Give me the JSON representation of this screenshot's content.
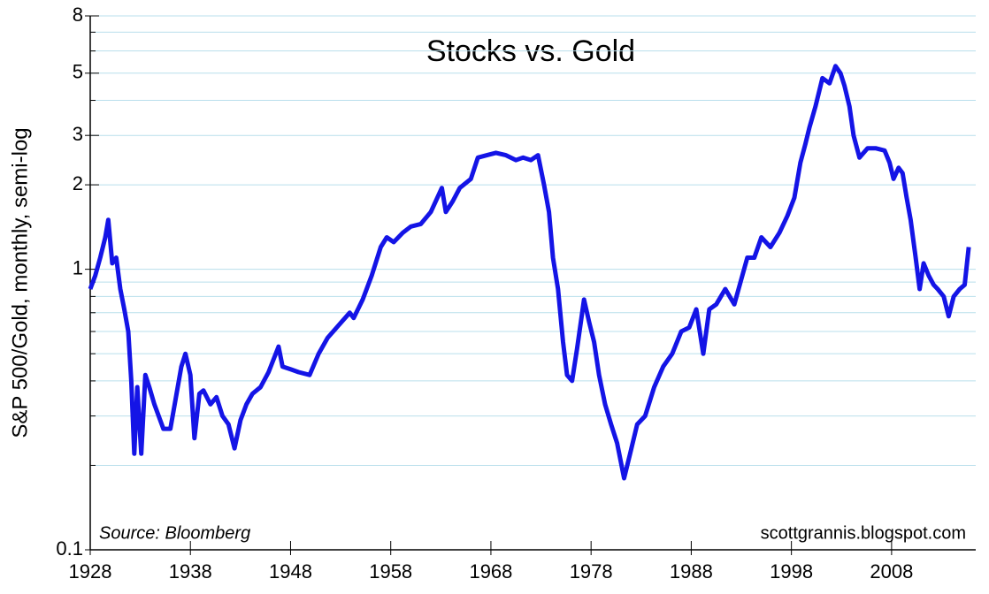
{
  "chart_data": {
    "type": "line",
    "title": "Stocks vs. Gold",
    "y_label": "S&P 500/Gold, monthly, semi-log",
    "source": "Source: Bloomberg",
    "credit": "scottgrannis.blogspot.com",
    "yscale": "log",
    "grid": true,
    "color": "#1414e6",
    "grid_color": "#b9dfec",
    "xlim": [
      1928,
      2016.4
    ],
    "xticks": [
      1928,
      1938,
      1948,
      1958,
      1968,
      1978,
      1988,
      1998,
      2008
    ],
    "ylim": [
      0.1,
      8
    ],
    "yticks": [
      0.1,
      1,
      2,
      3,
      5,
      8
    ],
    "minor_yticks": [
      0.2,
      0.3,
      0.4,
      0.5,
      0.6,
      0.7,
      0.8,
      0.9,
      4,
      6,
      7
    ],
    "x": [
      1928,
      1928.5,
      1929,
      1929.5,
      1929.8,
      1930.2,
      1930.6,
      1931,
      1931.4,
      1931.8,
      1932.1,
      1932.4,
      1932.7,
      1933.1,
      1933.5,
      1933.9,
      1934.4,
      1935.3,
      1936,
      1936.5,
      1937.1,
      1937.5,
      1938,
      1938.4,
      1938.9,
      1939.3,
      1940,
      1940.6,
      1941.2,
      1941.8,
      1942.4,
      1943,
      1943.6,
      1944.2,
      1945,
      1945.8,
      1946.8,
      1947.2,
      1948,
      1948.8,
      1949.9,
      1950.8,
      1951.7,
      1952.6,
      1953.9,
      1954.3,
      1955.2,
      1956.1,
      1957,
      1957.6,
      1958.3,
      1959.2,
      1960,
      1961,
      1962,
      1963.1,
      1963.5,
      1964.2,
      1964.9,
      1966,
      1966.7,
      1967.6,
      1968.5,
      1969.5,
      1970.5,
      1971.2,
      1972,
      1972.7,
      1973.3,
      1973.8,
      1974.2,
      1974.7,
      1975.2,
      1975.6,
      1976.1,
      1976.6,
      1977.3,
      1977.8,
      1978.3,
      1978.8,
      1979.4,
      1980,
      1980.6,
      1981.3,
      1981.9,
      1982.6,
      1983.4,
      1984.3,
      1985.2,
      1986.1,
      1987,
      1987.8,
      1988.5,
      1989.2,
      1989.8,
      1990.5,
      1991.4,
      1992.3,
      1993.6,
      1994.3,
      1995,
      1995.9,
      1996.8,
      1997.6,
      1998.3,
      1998.9,
      1999.4,
      1999.8,
      2000.4,
      2001.1,
      2001.8,
      2002.4,
      2002.9,
      2003.3,
      2003.8,
      2004.2,
      2004.8,
      2005.6,
      2006.4,
      2007.3,
      2007.8,
      2008.2,
      2008.7,
      2009.1,
      2009.5,
      2009.9,
      2010.4,
      2010.8,
      2011.2,
      2011.7,
      2012.2,
      2012.6,
      2013.2,
      2013.7,
      2014.2,
      2014.8,
      2015.3,
      2015.7
    ],
    "values": [
      0.85,
      0.95,
      1.1,
      1.3,
      1.5,
      1.05,
      1.1,
      0.85,
      0.72,
      0.6,
      0.4,
      0.22,
      0.38,
      0.22,
      0.42,
      0.38,
      0.33,
      0.27,
      0.27,
      0.34,
      0.45,
      0.5,
      0.42,
      0.25,
      0.36,
      0.37,
      0.33,
      0.35,
      0.3,
      0.28,
      0.23,
      0.29,
      0.33,
      0.36,
      0.38,
      0.43,
      0.53,
      0.45,
      0.44,
      0.43,
      0.42,
      0.5,
      0.57,
      0.62,
      0.7,
      0.67,
      0.78,
      0.95,
      1.2,
      1.3,
      1.25,
      1.35,
      1.42,
      1.45,
      1.6,
      1.95,
      1.6,
      1.75,
      1.95,
      2.1,
      2.5,
      2.55,
      2.6,
      2.55,
      2.45,
      2.5,
      2.45,
      2.55,
      2.0,
      1.6,
      1.1,
      0.85,
      0.55,
      0.42,
      0.4,
      0.52,
      0.78,
      0.65,
      0.55,
      0.42,
      0.33,
      0.28,
      0.24,
      0.18,
      0.22,
      0.28,
      0.3,
      0.38,
      0.45,
      0.5,
      0.6,
      0.62,
      0.72,
      0.5,
      0.72,
      0.75,
      0.85,
      0.75,
      1.1,
      1.1,
      1.3,
      1.2,
      1.35,
      1.55,
      1.8,
      2.4,
      2.8,
      3.2,
      3.8,
      4.8,
      4.6,
      5.3,
      5.0,
      4.5,
      3.8,
      3.0,
      2.5,
      2.7,
      2.7,
      2.65,
      2.4,
      2.1,
      2.3,
      2.2,
      1.8,
      1.5,
      1.1,
      0.85,
      1.05,
      0.95,
      0.88,
      0.85,
      0.8,
      0.68,
      0.8,
      0.85,
      0.88,
      1.2
    ]
  }
}
